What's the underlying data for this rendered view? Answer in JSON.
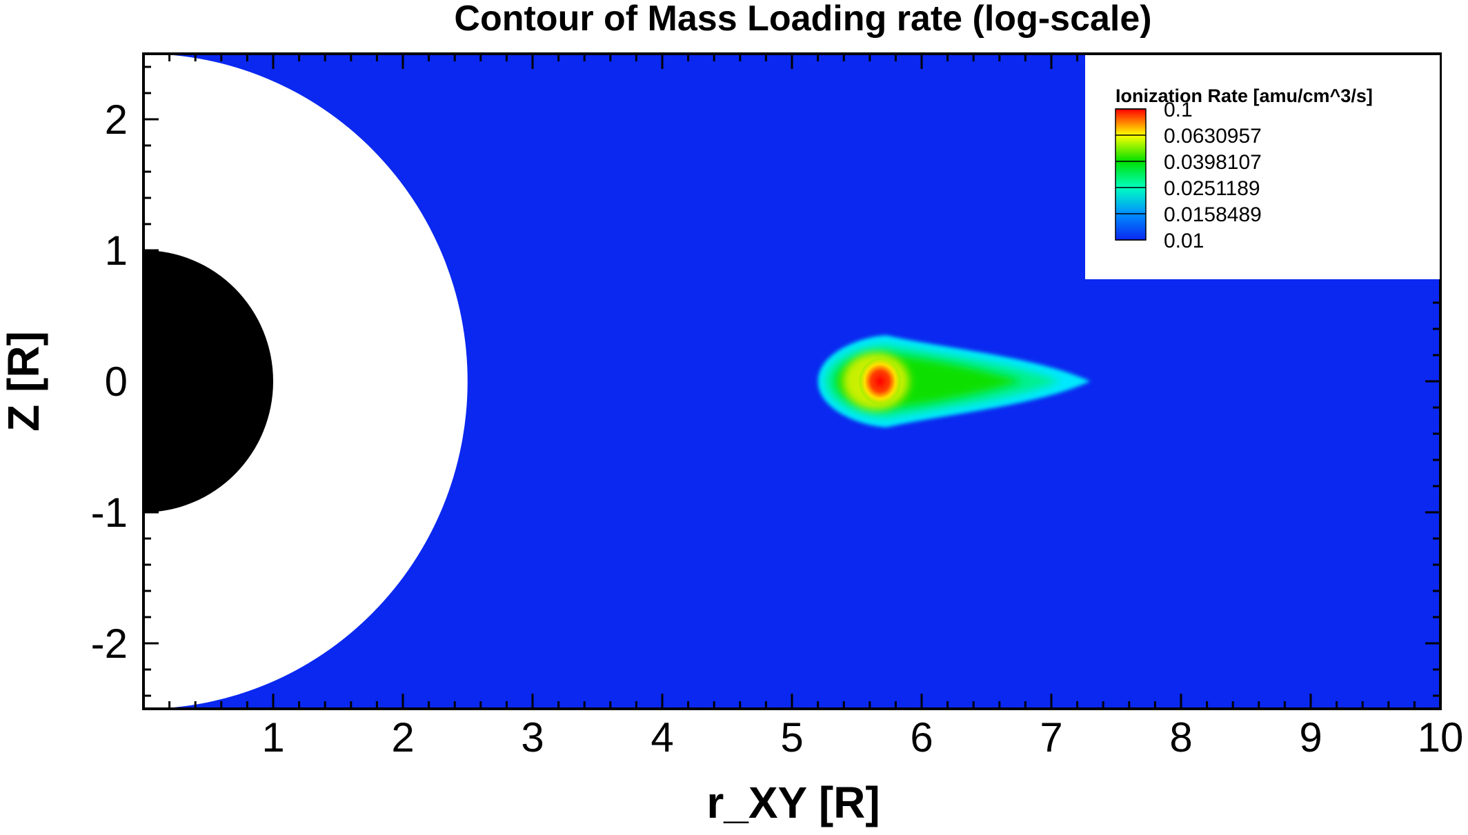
{
  "chart_data": {
    "type": "heatmap",
    "title": "Contour of Mass Loading rate (log-scale)",
    "xlabel": "r_XY [R]",
    "ylabel": "Z [R]",
    "xlim": [
      0,
      10
    ],
    "ylim": [
      -2.5,
      2.5
    ],
    "x_ticks": [
      1,
      2,
      3,
      4,
      5,
      6,
      7,
      8,
      9,
      10
    ],
    "y_ticks": [
      -2,
      -1,
      0,
      1,
      2
    ],
    "x_tick_labels": [
      "1",
      "2",
      "3",
      "4",
      "5",
      "6",
      "7",
      "8",
      "9",
      "10"
    ],
    "y_tick_labels": [
      "-2",
      "-1",
      "0",
      "1",
      "2"
    ],
    "colorscale": "log",
    "background_color": "#0a28f0",
    "planet": {
      "center_r": 0,
      "center_z": 0,
      "radius": 1,
      "color": "#000000"
    },
    "excluded_region": {
      "center_r": 0,
      "center_z": 0,
      "radius": 2.5,
      "color": "#ffffff"
    },
    "source": {
      "peak_r": 5.68,
      "peak_z": 0,
      "peak_value": 0.1,
      "tail_end_r": 7.3,
      "half_height_z": 0.35
    },
    "legend": {
      "title": "Ionization Rate [amu/cm^3/s]",
      "placement": "top-right",
      "levels": [
        "0.1",
        "0.0630957",
        "0.0398107",
        "0.0251189",
        "0.0158489",
        "0.01"
      ],
      "colors": [
        "#ff0000",
        "#ffff00",
        "#00e000",
        "#00ffc0",
        "#0090ff",
        "#0a28f0"
      ]
    }
  }
}
